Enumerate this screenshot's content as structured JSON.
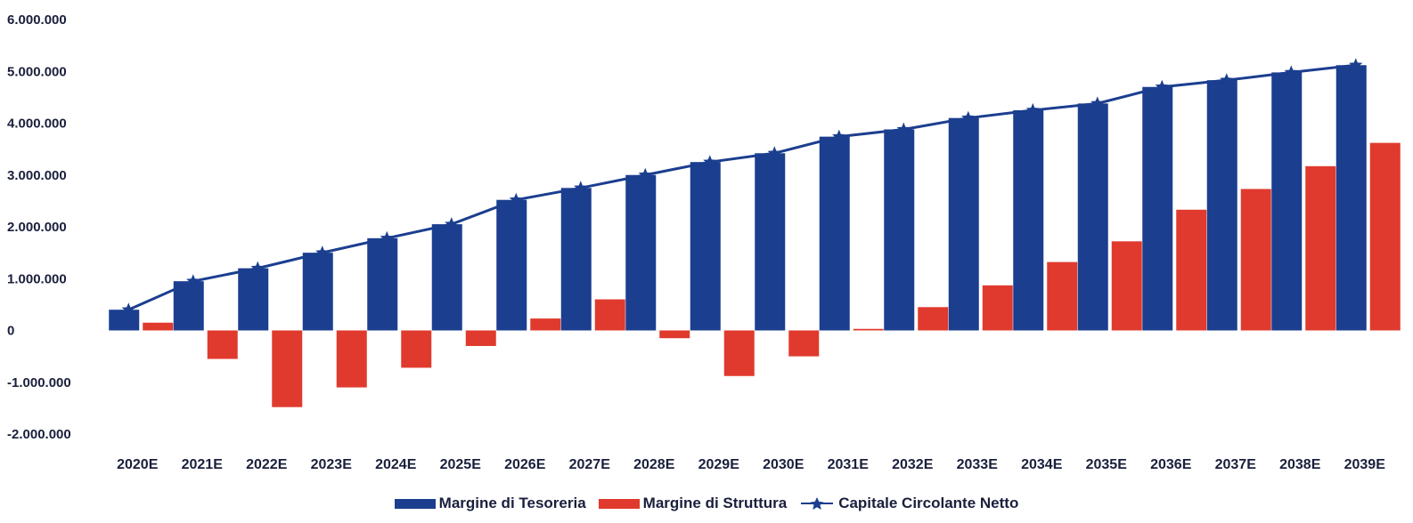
{
  "chart_data": {
    "type": "bar",
    "categories": [
      "2020E",
      "2021E",
      "2022E",
      "2023E",
      "2024E",
      "2025E",
      "2026E",
      "2027E",
      "2028E",
      "2029E",
      "2030E",
      "2031E",
      "2032E",
      "2033E",
      "2034E",
      "2035E",
      "2036E",
      "2037E",
      "2038E",
      "2039E"
    ],
    "series": [
      {
        "name": "Margine di Tesoreria",
        "type": "bar",
        "color": "#1b3e8f",
        "values": [
          400000,
          950000,
          1200000,
          1500000,
          1780000,
          2050000,
          2520000,
          2750000,
          3000000,
          3250000,
          3420000,
          3740000,
          3880000,
          4100000,
          4250000,
          4380000,
          4700000,
          4830000,
          4980000,
          5120000
        ]
      },
      {
        "name": "Margine di Struttura",
        "type": "bar",
        "color": "#e03a2e",
        "values": [
          150000,
          -550000,
          -1480000,
          -1100000,
          -720000,
          -300000,
          230000,
          600000,
          -150000,
          -880000,
          -500000,
          30000,
          450000,
          870000,
          1320000,
          1720000,
          2330000,
          2730000,
          3170000,
          3620000
        ]
      },
      {
        "name": "Capitale Circolante Netto",
        "type": "line",
        "color": "#1b3e8f",
        "marker": "star",
        "values": [
          400000,
          950000,
          1200000,
          1500000,
          1780000,
          2050000,
          2520000,
          2750000,
          3000000,
          3250000,
          3420000,
          3740000,
          3880000,
          4100000,
          4250000,
          4380000,
          4700000,
          4830000,
          4980000,
          5120000
        ]
      }
    ],
    "ylim": [
      -2000000,
      6000000
    ],
    "yticks": [
      {
        "value": 6000000,
        "label": "6.000.000"
      },
      {
        "value": 5000000,
        "label": "5.000.000"
      },
      {
        "value": 4000000,
        "label": "4.000.000"
      },
      {
        "value": 3000000,
        "label": "3.000.000"
      },
      {
        "value": 2000000,
        "label": "2.000.000"
      },
      {
        "value": 1000000,
        "label": "1.000.000"
      },
      {
        "value": 0,
        "label": "0"
      },
      {
        "value": -1000000,
        "label": "-1.000.000"
      },
      {
        "value": -2000000,
        "label": "-2.000.000"
      }
    ],
    "grid": false,
    "legend_position": "bottom-center"
  },
  "legend": [
    {
      "label": "Margine di Tesoreria"
    },
    {
      "label": "Margine di Struttura"
    },
    {
      "label": "Capitale Circolante Netto"
    }
  ]
}
